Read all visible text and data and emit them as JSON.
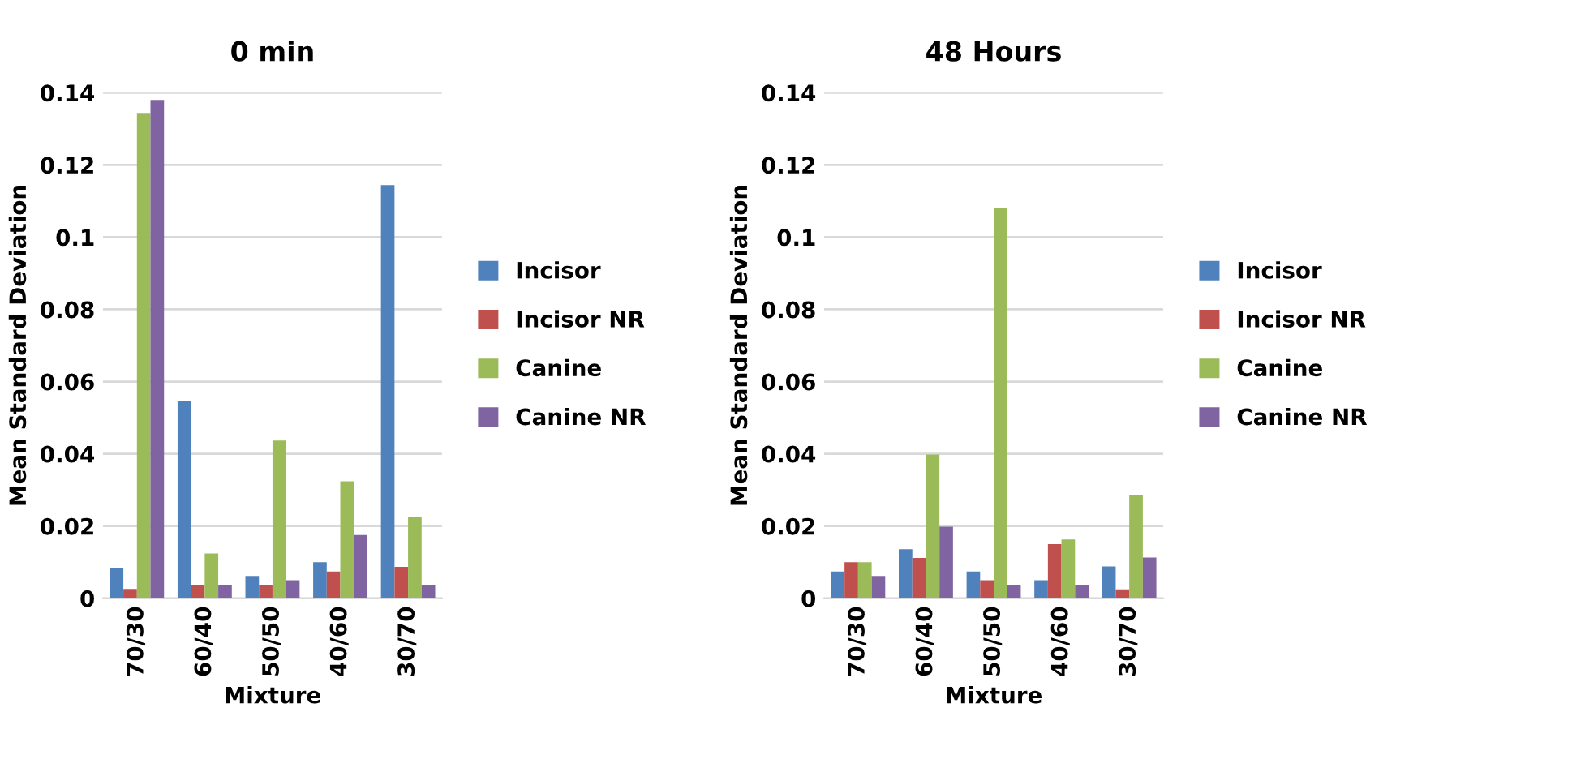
{
  "chart_data": [
    {
      "type": "bar",
      "title": "0 min",
      "xlabel": "Mixture",
      "ylabel": "Mean Standard Deviation",
      "categories": [
        "70/30",
        "60/40",
        "50/50",
        "40/60",
        "30/70"
      ],
      "series": [
        {
          "name": "Incisor",
          "color": "#4f81bd",
          "values": [
            0.0085,
            0.0547,
            0.0062,
            0.01,
            0.1144
          ]
        },
        {
          "name": "Incisor NR",
          "color": "#c0504d",
          "values": [
            0.0026,
            0.0037,
            0.0037,
            0.0074,
            0.0087
          ]
        },
        {
          "name": "Canine",
          "color": "#9bbb59",
          "values": [
            0.1344,
            0.0124,
            0.0437,
            0.0324,
            0.0225
          ]
        },
        {
          "name": "Canine NR",
          "color": "#8064a2",
          "values": [
            0.138,
            0.0037,
            0.005,
            0.0175,
            0.0037
          ]
        }
      ],
      "ylim": [
        0,
        0.14
      ],
      "yticks": [
        0,
        0.02,
        0.04,
        0.06,
        0.08,
        0.1,
        0.12,
        0.14
      ],
      "grid": "y",
      "legend": "right"
    },
    {
      "type": "bar",
      "title": "48 Hours",
      "xlabel": "Mixture",
      "ylabel": "Mean Standard Deviation",
      "categories": [
        "70/30",
        "60/40",
        "50/50",
        "40/60",
        "30/70"
      ],
      "series": [
        {
          "name": "Incisor",
          "color": "#4f81bd",
          "values": [
            0.0074,
            0.0136,
            0.0074,
            0.005,
            0.0088
          ]
        },
        {
          "name": "Incisor NR",
          "color": "#c0504d",
          "values": [
            0.01,
            0.0112,
            0.005,
            0.015,
            0.0025
          ]
        },
        {
          "name": "Canine",
          "color": "#9bbb59",
          "values": [
            0.01,
            0.0398,
            0.108,
            0.0163,
            0.0287
          ]
        },
        {
          "name": "Canine NR",
          "color": "#8064a2",
          "values": [
            0.0062,
            0.0198,
            0.0037,
            0.0037,
            0.0113
          ]
        }
      ],
      "ylim": [
        0,
        0.14
      ],
      "yticks": [
        0,
        0.02,
        0.04,
        0.06,
        0.08,
        0.1,
        0.12,
        0.14
      ],
      "grid": "y",
      "legend": "right"
    }
  ]
}
